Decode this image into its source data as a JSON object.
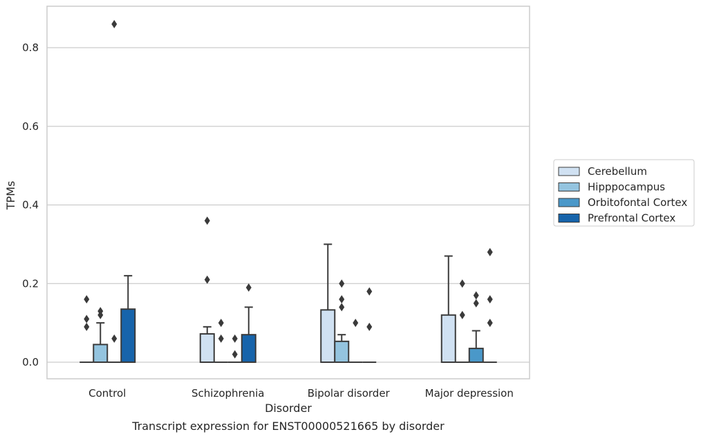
{
  "chart_data": {
    "type": "box",
    "caption": "Transcript expression for ENST00000521665 by disorder",
    "xlabel": "Disorder",
    "ylabel": "TPMs",
    "ylim": [
      -0.042,
      0.905
    ],
    "yticks": [
      "0.0",
      "0.2",
      "0.4",
      "0.6",
      "0.8"
    ],
    "grid": "horizontal",
    "legend_position": "right",
    "categories": [
      "Control",
      "Schizophrenia",
      "Bipolar disorder",
      "Major depression"
    ],
    "series": [
      {
        "name": "Cerebellum",
        "color": "#d0e1f2"
      },
      {
        "name": "Hipppocampus",
        "color": "#94c4df"
      },
      {
        "name": "Orbitofontal Cortex",
        "color": "#4a98c9"
      },
      {
        "name": "Prefrontal Cortex",
        "color": "#1764ab"
      }
    ],
    "boxes": [
      [
        {
          "q1": 0,
          "med": 0,
          "q3": 0,
          "whislo": 0,
          "whishi": 0,
          "fliers": [
            0.16,
            0.11,
            0.09
          ]
        },
        {
          "q1": 0,
          "med": 0,
          "q3": 0.045,
          "whislo": 0,
          "whishi": 0.1,
          "fliers": [
            0.13,
            0.12
          ]
        },
        {
          "q1": 0,
          "med": 0,
          "q3": 0,
          "whislo": 0,
          "whishi": 0,
          "fliers": [
            0.86,
            0.06
          ]
        },
        {
          "q1": 0,
          "med": 0,
          "q3": 0.135,
          "whislo": 0,
          "whishi": 0.22,
          "fliers": []
        }
      ],
      [
        {
          "q1": 0,
          "med": 0,
          "q3": 0.072,
          "whislo": 0,
          "whishi": 0.09,
          "fliers": [
            0.36,
            0.21
          ]
        },
        {
          "q1": 0,
          "med": 0,
          "q3": 0,
          "whislo": 0,
          "whishi": 0,
          "fliers": [
            0.1,
            0.06
          ]
        },
        {
          "q1": 0,
          "med": 0,
          "q3": 0,
          "whislo": 0,
          "whishi": 0,
          "fliers": [
            0.06,
            0.02
          ]
        },
        {
          "q1": 0,
          "med": 0,
          "q3": 0.07,
          "whislo": 0,
          "whishi": 0.14,
          "fliers": [
            0.19
          ]
        }
      ],
      [
        {
          "q1": 0,
          "med": 0,
          "q3": 0.133,
          "whislo": 0,
          "whishi": 0.3,
          "fliers": []
        },
        {
          "q1": 0,
          "med": 0,
          "q3": 0.053,
          "whislo": 0,
          "whishi": 0.07,
          "fliers": [
            0.2,
            0.16,
            0.14
          ]
        },
        {
          "q1": 0,
          "med": 0,
          "q3": 0,
          "whislo": 0,
          "whishi": 0,
          "fliers": [
            0.1
          ]
        },
        {
          "q1": 0,
          "med": 0,
          "q3": 0,
          "whislo": 0,
          "whishi": 0,
          "fliers": [
            0.18,
            0.09
          ]
        }
      ],
      [
        {
          "q1": 0,
          "med": 0,
          "q3": 0.12,
          "whislo": 0,
          "whishi": 0.27,
          "fliers": []
        },
        {
          "q1": 0,
          "med": 0,
          "q3": 0,
          "whislo": 0,
          "whishi": 0,
          "fliers": [
            0.2,
            0.12
          ]
        },
        {
          "q1": 0,
          "med": 0,
          "q3": 0.035,
          "whislo": 0,
          "whishi": 0.08,
          "fliers": [
            0.17,
            0.15
          ]
        },
        {
          "q1": 0,
          "med": 0,
          "q3": 0,
          "whislo": 0,
          "whishi": 0,
          "fliers": [
            0.28,
            0.16,
            0.1
          ]
        }
      ]
    ]
  }
}
